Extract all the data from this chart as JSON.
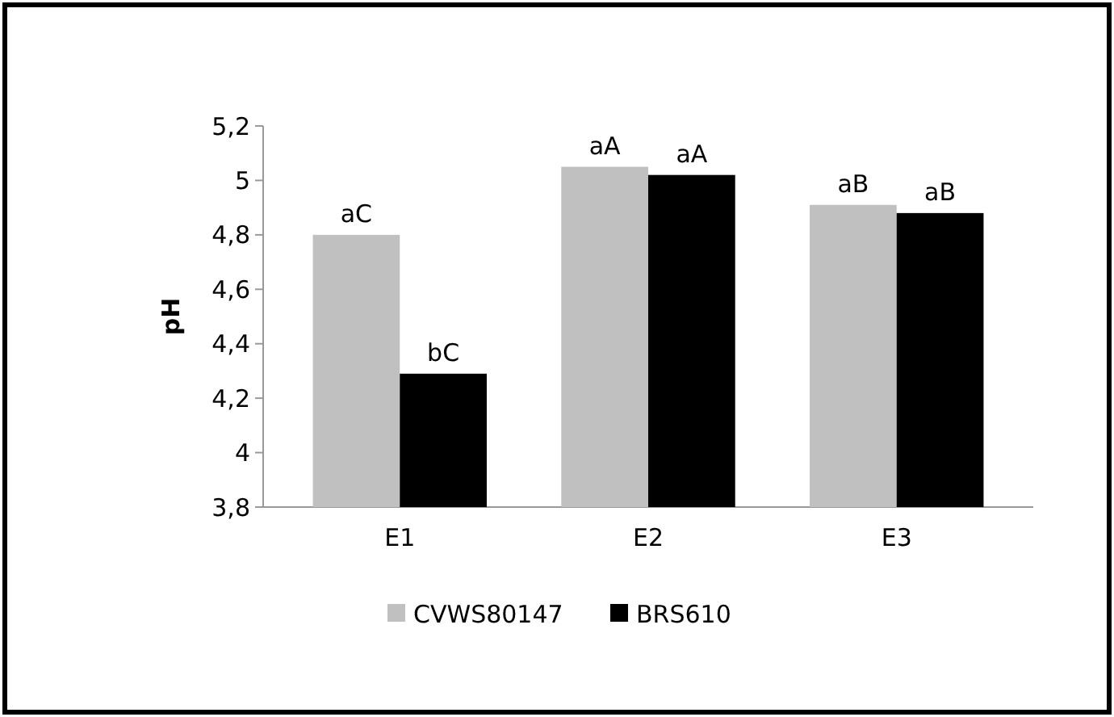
{
  "chart_data": {
    "type": "bar",
    "ylabel": "pH",
    "categories": [
      "E1",
      "E2",
      "E3"
    ],
    "series": [
      {
        "name": "CVWS80147",
        "color": "#c0c0c0",
        "values": [
          4.8,
          5.05,
          4.91
        ],
        "value_labels": [
          "aC",
          "aA",
          "aB"
        ]
      },
      {
        "name": "BRS610",
        "color": "#000000",
        "values": [
          4.29,
          5.02,
          4.88
        ],
        "value_labels": [
          "bC",
          "aA",
          "aB"
        ]
      }
    ],
    "ylim": [
      3.8,
      5.2
    ],
    "yticks": [
      {
        "value": 3.8,
        "label": "3,8"
      },
      4,
      {
        "value": 4.2,
        "label": "4,2"
      },
      {
        "value": 4.4,
        "label": "4,4"
      },
      {
        "value": 4.6,
        "label": "4,6"
      },
      {
        "value": 4.8,
        "label": "4,8"
      },
      5,
      {
        "value": 5.2,
        "label": "5,2"
      }
    ],
    "grid": false,
    "legend": "bottom"
  }
}
